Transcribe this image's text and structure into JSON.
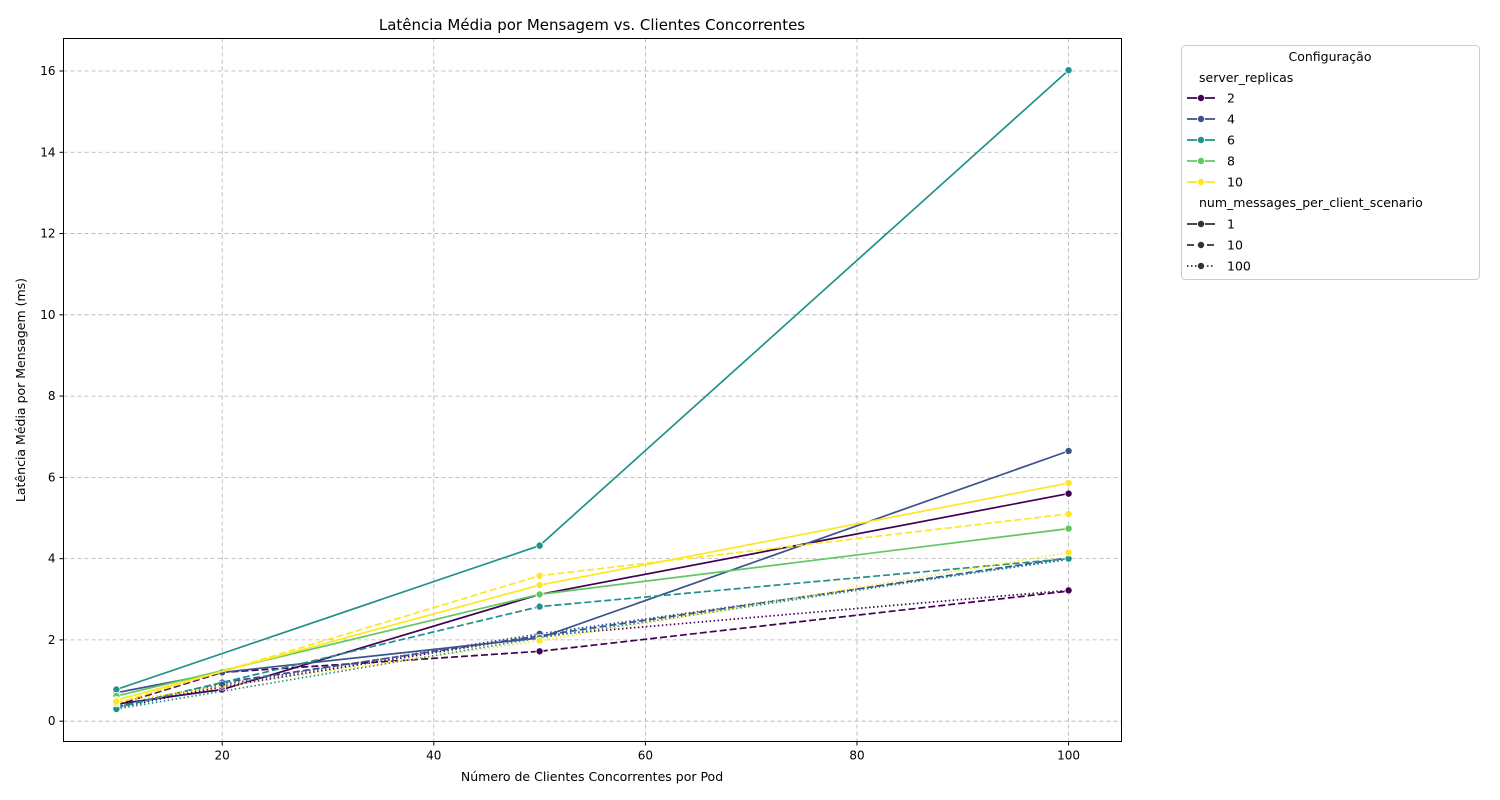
{
  "chart_data": {
    "type": "line",
    "title": "Latência Média por Mensagem vs. Clientes Concorrentes",
    "xlabel": "Número de Clientes Concorrentes por Pod",
    "ylabel": "Latência Média por Mensagem (ms)",
    "xlim": [
      5,
      105
    ],
    "ylim": [
      -0.5,
      16.8
    ],
    "x_ticks": [
      20,
      40,
      60,
      80,
      100
    ],
    "y_ticks": [
      0,
      2,
      4,
      6,
      8,
      10,
      12,
      14,
      16
    ],
    "grid": true,
    "legend": {
      "title": "Configuração",
      "placement": "outside-top-right",
      "hue_title": "server_replicas",
      "hue_entries": [
        {
          "label": "2",
          "color": "#440154"
        },
        {
          "label": "4",
          "color": "#3b528b"
        },
        {
          "label": "6",
          "color": "#21918c"
        },
        {
          "label": "8",
          "color": "#5ec962"
        },
        {
          "label": "10",
          "color": "#fde725"
        }
      ],
      "style_title": "num_messages_per_client_scenario",
      "style_entries": [
        {
          "label": "1",
          "dash": "solid"
        },
        {
          "label": "10",
          "dash": "dashed"
        },
        {
          "label": "100",
          "dash": "dotted"
        }
      ]
    },
    "series": [
      {
        "server_replicas": "2",
        "messages": "1",
        "color": "#440154",
        "dash": "solid",
        "x": [
          10,
          20,
          50,
          100
        ],
        "y": [
          0.42,
          0.78,
          3.12,
          5.6
        ]
      },
      {
        "server_replicas": "2",
        "messages": "10",
        "color": "#440154",
        "dash": "dashed",
        "x": [
          10,
          20,
          50,
          100
        ],
        "y": [
          0.4,
          1.2,
          1.72,
          3.2
        ]
      },
      {
        "server_replicas": "2",
        "messages": "100",
        "color": "#440154",
        "dash": "dotted",
        "x": [
          10,
          20,
          50,
          100
        ],
        "y": [
          0.33,
          0.85,
          2.1,
          3.22
        ]
      },
      {
        "server_replicas": "4",
        "messages": "1",
        "color": "#3b528b",
        "dash": "solid",
        "x": [
          10,
          20,
          50,
          100
        ],
        "y": [
          0.7,
          1.2,
          2.05,
          6.65
        ]
      },
      {
        "server_replicas": "4",
        "messages": "10",
        "color": "#3b528b",
        "dash": "dashed",
        "x": [
          10,
          20,
          50,
          100
        ],
        "y": [
          0.35,
          0.95,
          2.1,
          4.02
        ]
      },
      {
        "server_replicas": "4",
        "messages": "100",
        "color": "#3b528b",
        "dash": "dotted",
        "x": [
          10,
          20,
          50,
          100
        ],
        "y": [
          0.38,
          0.9,
          2.15,
          3.98
        ]
      },
      {
        "server_replicas": "6",
        "messages": "1",
        "color": "#21918c",
        "dash": "solid",
        "x": [
          10,
          50,
          100
        ],
        "y": [
          0.78,
          4.32,
          16.02
        ]
      },
      {
        "server_replicas": "6",
        "messages": "10",
        "color": "#21918c",
        "dash": "dashed",
        "x": [
          10,
          50,
          100
        ],
        "y": [
          0.33,
          2.82,
          4.0
        ]
      },
      {
        "server_replicas": "6",
        "messages": "100",
        "color": "#21918c",
        "dash": "dotted",
        "x": [
          10,
          50,
          100
        ],
        "y": [
          0.3,
          2.05,
          4.0
        ]
      },
      {
        "server_replicas": "8",
        "messages": "1",
        "color": "#5ec962",
        "dash": "solid",
        "x": [
          10,
          50,
          100
        ],
        "y": [
          0.62,
          3.12,
          4.74
        ]
      },
      {
        "server_replicas": "10",
        "messages": "1",
        "color": "#fde725",
        "dash": "solid",
        "x": [
          10,
          50,
          100
        ],
        "y": [
          0.52,
          3.35,
          5.86
        ]
      },
      {
        "server_replicas": "10",
        "messages": "10",
        "color": "#fde725",
        "dash": "dashed",
        "x": [
          10,
          50,
          100
        ],
        "y": [
          0.44,
          3.58,
          5.1
        ]
      },
      {
        "server_replicas": "10",
        "messages": "100",
        "color": "#fde725",
        "dash": "dotted",
        "x": [
          10,
          50,
          100
        ],
        "y": [
          0.48,
          1.98,
          4.15
        ]
      }
    ]
  }
}
